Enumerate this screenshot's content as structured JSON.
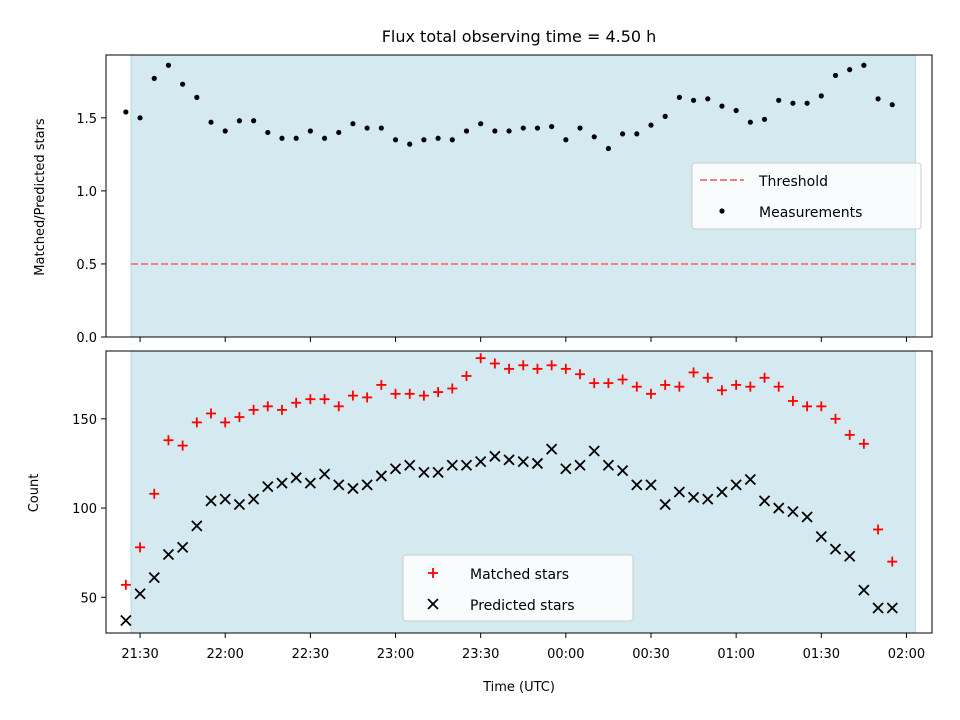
{
  "chart_data": [
    {
      "type": "scatter",
      "title": "Flux total observing time = 4.50 h",
      "ylabel": "Matched/Predicted stars",
      "ylim": [
        0.0,
        1.93
      ],
      "yticks": [
        "0.0",
        "0.5",
        "1.0",
        "1.5"
      ],
      "shaded_band": true,
      "legend": "center-right",
      "series": [
        {
          "name": "Threshold",
          "kind": "dashed-line",
          "color": "#f08080",
          "y": 0.5
        },
        {
          "name": "Measurements",
          "kind": "points",
          "color": "#000000",
          "values": [
            1.54,
            1.5,
            1.77,
            1.86,
            1.73,
            1.64,
            1.47,
            1.41,
            1.48,
            1.48,
            1.4,
            1.36,
            1.36,
            1.41,
            1.36,
            1.4,
            1.46,
            1.43,
            1.43,
            1.35,
            1.32,
            1.35,
            1.36,
            1.35,
            1.41,
            1.46,
            1.41,
            1.41,
            1.43,
            1.43,
            1.44,
            1.35,
            1.43,
            1.37,
            1.29,
            1.39,
            1.39,
            1.45,
            1.51,
            1.64,
            1.62,
            1.63,
            1.58,
            1.55,
            1.47,
            1.49,
            1.62,
            1.6,
            1.6,
            1.65,
            1.79,
            1.83,
            1.86,
            1.63,
            1.59
          ]
        }
      ]
    },
    {
      "type": "scatter",
      "xlabel": "Time (UTC)",
      "ylabel": "Count",
      "ylim": [
        30,
        188
      ],
      "yticks": [
        "50",
        "100",
        "150"
      ],
      "xticks": [
        "21:30",
        "22:00",
        "22:30",
        "23:00",
        "23:30",
        "00:00",
        "00:30",
        "01:00",
        "01:30",
        "02:00"
      ],
      "xtick_minutes": [
        0,
        30,
        60,
        90,
        120,
        150,
        180,
        210,
        240,
        270
      ],
      "x_start_minutes": -5,
      "x_step_minutes": 5,
      "shaded_band": true,
      "legend": "lower-center",
      "series": [
        {
          "name": "Matched stars",
          "kind": "plus",
          "color": "#ff0000",
          "values": [
            57,
            78,
            108,
            138,
            135,
            148,
            153,
            148,
            151,
            155,
            157,
            155,
            159,
            161,
            161,
            157,
            163,
            162,
            169,
            164,
            164,
            163,
            165,
            167,
            174,
            184,
            181,
            178,
            180,
            178,
            180,
            178,
            175,
            170,
            170,
            172,
            168,
            164,
            169,
            168,
            176,
            173,
            166,
            169,
            168,
            173,
            168,
            160,
            157,
            157,
            150,
            141,
            136,
            88,
            70
          ]
        },
        {
          "name": "Predicted stars",
          "kind": "cross",
          "color": "#000000",
          "values": [
            37,
            52,
            61,
            74,
            78,
            90,
            104,
            105,
            102,
            105,
            112,
            114,
            117,
            114,
            119,
            113,
            111,
            113,
            118,
            122,
            124,
            120,
            120,
            124,
            124,
            126,
            129,
            127,
            126,
            125,
            133,
            122,
            124,
            132,
            124,
            121,
            113,
            113,
            102,
            109,
            106,
            105,
            109,
            113,
            116,
            104,
            100,
            98,
            95,
            84,
            77,
            73,
            54,
            44,
            44
          ]
        }
      ]
    }
  ]
}
